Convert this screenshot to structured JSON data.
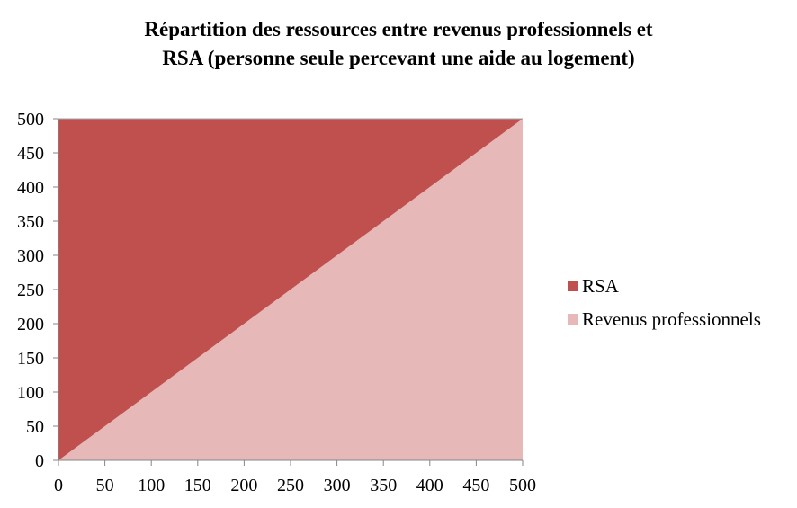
{
  "chart_data": {
    "type": "area",
    "stacked": true,
    "title_lines": [
      "Répartition des ressources entre revenus professionnels et",
      "RSA (personne seule percevant une aide au logement)"
    ],
    "xlabel": "",
    "ylabel": "",
    "x": [
      0,
      50,
      100,
      150,
      200,
      250,
      300,
      350,
      400,
      450,
      500
    ],
    "xlim": [
      0,
      500
    ],
    "ylim": [
      0,
      500
    ],
    "xticks": [
      "0",
      "50",
      "100",
      "150",
      "200",
      "250",
      "300",
      "350",
      "400",
      "450",
      "500"
    ],
    "yticks": [
      "0",
      "50",
      "100",
      "150",
      "200",
      "250",
      "300",
      "350",
      "400",
      "450",
      "500"
    ],
    "grid": false,
    "legend_position": "right",
    "series": [
      {
        "name": "Revenus professionnels",
        "color": "#e6b8b7",
        "values": [
          0,
          50,
          100,
          150,
          200,
          250,
          300,
          350,
          400,
          450,
          500
        ]
      },
      {
        "name": "RSA",
        "color": "#c0504d",
        "values": [
          500,
          450,
          400,
          350,
          300,
          250,
          200,
          150,
          100,
          50,
          0
        ]
      }
    ],
    "legend_order": [
      "RSA",
      "Revenus professionnels"
    ]
  }
}
